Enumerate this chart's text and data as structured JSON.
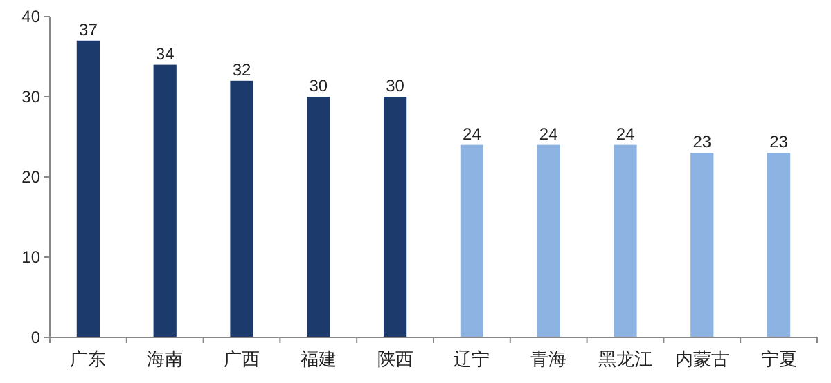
{
  "chart_data": {
    "type": "bar",
    "categories": [
      "广东",
      "海南",
      "广西",
      "福建",
      "陕西",
      "辽宁",
      "青海",
      "黑龙江",
      "内蒙古",
      "宁夏"
    ],
    "values": [
      37,
      34,
      32,
      30,
      30,
      24,
      24,
      24,
      23,
      23
    ],
    "colors": [
      "#1c3a6b",
      "#1c3a6b",
      "#1c3a6b",
      "#1c3a6b",
      "#1c3a6b",
      "#8db3e2",
      "#8db3e2",
      "#8db3e2",
      "#8db3e2",
      "#8db3e2"
    ],
    "ylim": [
      0,
      40
    ],
    "yticks": [
      0,
      10,
      20,
      30,
      40
    ],
    "data_labels": true
  }
}
